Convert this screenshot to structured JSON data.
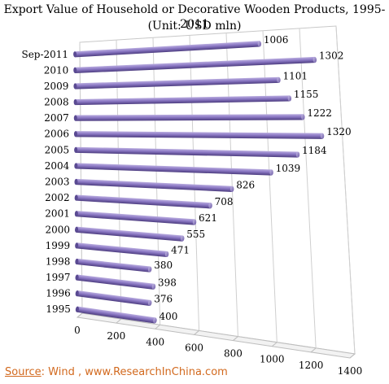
{
  "chart_data": {
    "type": "bar",
    "orientation": "horizontal",
    "style": "3d-cylinder",
    "title": "Export Value of Household or Decorative Wooden Products, 1995-2011",
    "subtitle": "(Unit: USD mln)",
    "categories": [
      "Sep-2011",
      "2010",
      "2009",
      "2008",
      "2007",
      "2006",
      "2005",
      "2004",
      "2003",
      "2002",
      "2001",
      "2000",
      "1999",
      "1998",
      "1997",
      "1996",
      "1995"
    ],
    "values": [
      1006,
      1302,
      1101,
      1155,
      1222,
      1320,
      1184,
      1039,
      826,
      708,
      621,
      555,
      471,
      380,
      398,
      376,
      400
    ],
    "value_labels": [
      "1006",
      "1302",
      "1101",
      "1155",
      "1222",
      "1320",
      "1184",
      "1039",
      "826",
      "708",
      "621",
      "555",
      "471",
      "380",
      "398",
      "376",
      "400"
    ],
    "xticks": [
      "0",
      "200",
      "400",
      "600",
      "800",
      "1000",
      "1200",
      "1400"
    ],
    "xlim": [
      0,
      1400
    ],
    "grid": true,
    "bar_color": "#7b68b0"
  },
  "source": {
    "label": "Source",
    "text": ": Wind , www.ResearchInChina.com"
  }
}
